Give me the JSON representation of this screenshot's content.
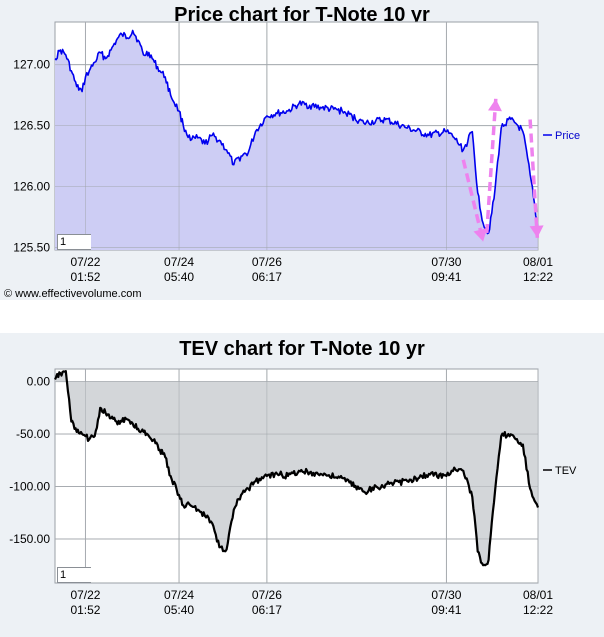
{
  "chart_data": [
    {
      "type": "area",
      "title": "Price chart for T-Note 10 yr",
      "xlabel": "",
      "ylabel": "",
      "x_ticks": [
        {
          "date": "07/22",
          "time": "01:52"
        },
        {
          "date": "07/24",
          "time": "05:40"
        },
        {
          "date": "07/26",
          "time": "06:17"
        },
        {
          "date": "07/30",
          "time": "09:41"
        },
        {
          "date": "08/01",
          "time": "12:22"
        }
      ],
      "y_ticks": [
        "127.00",
        "126.50",
        "126.00",
        "125.50"
      ],
      "ylim": [
        125.48,
        127.35
      ],
      "grid": true,
      "legend_position": "right",
      "input_value": "1",
      "fill_color": "#cdcdf4",
      "line_color": "#0000ee",
      "series": [
        {
          "name": "Price",
          "x": [
            "07/21 09:00",
            "07/21 12:00",
            "07/21 15:00",
            "07/21 18:00",
            "07/21 21:00",
            "07/22 00:00",
            "07/22 01:52",
            "07/22 04:00",
            "07/22 07:00",
            "07/22 10:00",
            "07/22 13:00",
            "07/22 16:00",
            "07/22 19:00",
            "07/22 22:00",
            "07/23 01:00",
            "07/23 04:00",
            "07/23 07:00",
            "07/23 10:00",
            "07/23 13:00",
            "07/23 16:00",
            "07/23 19:00",
            "07/23 22:00",
            "07/24 01:00",
            "07/24 05:40",
            "07/24 08:00",
            "07/24 12:00",
            "07/24 16:00",
            "07/24 20:00",
            "07/25 00:00",
            "07/25 04:00",
            "07/25 08:00",
            "07/25 12:00",
            "07/25 16:00",
            "07/25 20:00",
            "07/26 00:00",
            "07/26 06:17",
            "07/26 12:00",
            "07/26 18:00",
            "07/27 00:00",
            "07/27 12:00",
            "07/28 00:00",
            "07/28 12:00",
            "07/29 00:00",
            "07/29 12:00",
            "07/30 00:00",
            "07/30 09:41",
            "07/30 14:00",
            "07/30 19:00",
            "07/31 00:00",
            "07/31 03:00",
            "07/31 06:00",
            "07/31 09:00",
            "07/31 12:00",
            "07/31 16:00",
            "07/31 20:00",
            "08/01 00:00",
            "08/01 04:00",
            "08/01 08:00",
            "08/01 12:22"
          ],
          "values": [
            127.05,
            127.12,
            127.08,
            126.95,
            126.82,
            126.78,
            126.9,
            126.95,
            127.02,
            127.1,
            127.05,
            127.12,
            127.2,
            127.25,
            127.22,
            127.28,
            127.2,
            127.08,
            127.1,
            127.02,
            126.95,
            126.9,
            126.75,
            126.62,
            126.5,
            126.38,
            126.4,
            126.35,
            126.42,
            126.38,
            126.3,
            126.18,
            126.25,
            126.28,
            126.45,
            126.58,
            126.6,
            126.62,
            126.68,
            126.65,
            126.62,
            126.52,
            126.55,
            126.48,
            126.42,
            126.45,
            126.4,
            126.3,
            126.45,
            125.95,
            125.7,
            125.62,
            125.9,
            126.48,
            126.55,
            126.52,
            126.45,
            126.1,
            125.65
          ]
        }
      ],
      "annotations": [
        {
          "type": "arrow",
          "direction": "down",
          "color": "#ee82ee"
        },
        {
          "type": "arrow",
          "direction": "up",
          "color": "#ee82ee"
        },
        {
          "type": "arrow",
          "direction": "down",
          "color": "#ee82ee"
        }
      ]
    },
    {
      "type": "area",
      "title": "TEV chart for T-Note 10 yr",
      "xlabel": "",
      "ylabel": "",
      "x_ticks": [
        {
          "date": "07/22",
          "time": "01:52"
        },
        {
          "date": "07/24",
          "time": "05:40"
        },
        {
          "date": "07/26",
          "time": "06:17"
        },
        {
          "date": "07/30",
          "time": "09:41"
        },
        {
          "date": "08/01",
          "time": "12:22"
        }
      ],
      "y_ticks": [
        "0.00",
        "-50.00",
        "-100.00",
        "-150.00"
      ],
      "ylim": [
        -192,
        12
      ],
      "grid": true,
      "legend_position": "right",
      "input_value": "1",
      "fill_color": "#d3d6d9",
      "line_color": "#000000",
      "series": [
        {
          "name": "TEV",
          "x": [
            "07/21 09:00",
            "07/21 12:00",
            "07/21 15:00",
            "07/21 18:00",
            "07/21 21:00",
            "07/22 00:00",
            "07/22 01:52",
            "07/22 04:00",
            "07/22 07:00",
            "07/22 10:00",
            "07/22 13:00",
            "07/22 16:00",
            "07/22 19:00",
            "07/22 22:00",
            "07/23 01:00",
            "07/23 04:00",
            "07/23 07:00",
            "07/23 10:00",
            "07/23 13:00",
            "07/23 16:00",
            "07/23 19:00",
            "07/23 22:00",
            "07/24 01:00",
            "07/24 05:40",
            "07/24 08:00",
            "07/24 12:00",
            "07/24 16:00",
            "07/24 20:00",
            "07/25 00:00",
            "07/25 04:00",
            "07/25 08:00",
            "07/25 12:00",
            "07/25 16:00",
            "07/25 20:00",
            "07/26 00:00",
            "07/26 06:17",
            "07/26 12:00",
            "07/26 18:00",
            "07/27 00:00",
            "07/27 12:00",
            "07/28 00:00",
            "07/28 12:00",
            "07/29 00:00",
            "07/29 12:00",
            "07/30 00:00",
            "07/30 09:41",
            "07/30 14:00",
            "07/30 19:00",
            "07/31 00:00",
            "07/31 03:00",
            "07/31 06:00",
            "07/31 09:00",
            "07/31 12:00",
            "07/31 16:00",
            "07/31 20:00",
            "08/01 00:00",
            "08/01 04:00",
            "08/01 08:00",
            "08/01 12:22"
          ],
          "values": [
            2,
            8,
            10,
            -38,
            -48,
            -50,
            -52,
            -55,
            -52,
            -25,
            -30,
            -35,
            -38,
            -38,
            -36,
            -40,
            -45,
            -48,
            -52,
            -55,
            -65,
            -72,
            -90,
            -108,
            -118,
            -118,
            -122,
            -128,
            -135,
            -158,
            -160,
            -122,
            -108,
            -102,
            -95,
            -90,
            -88,
            -90,
            -85,
            -88,
            -92,
            -105,
            -98,
            -95,
            -88,
            -90,
            -82,
            -85,
            -110,
            -162,
            -175,
            -170,
            -115,
            -52,
            -50,
            -55,
            -60,
            -102,
            -120
          ]
        }
      ]
    }
  ],
  "footer": {
    "copyright": "© www.effectivevolume.com"
  }
}
